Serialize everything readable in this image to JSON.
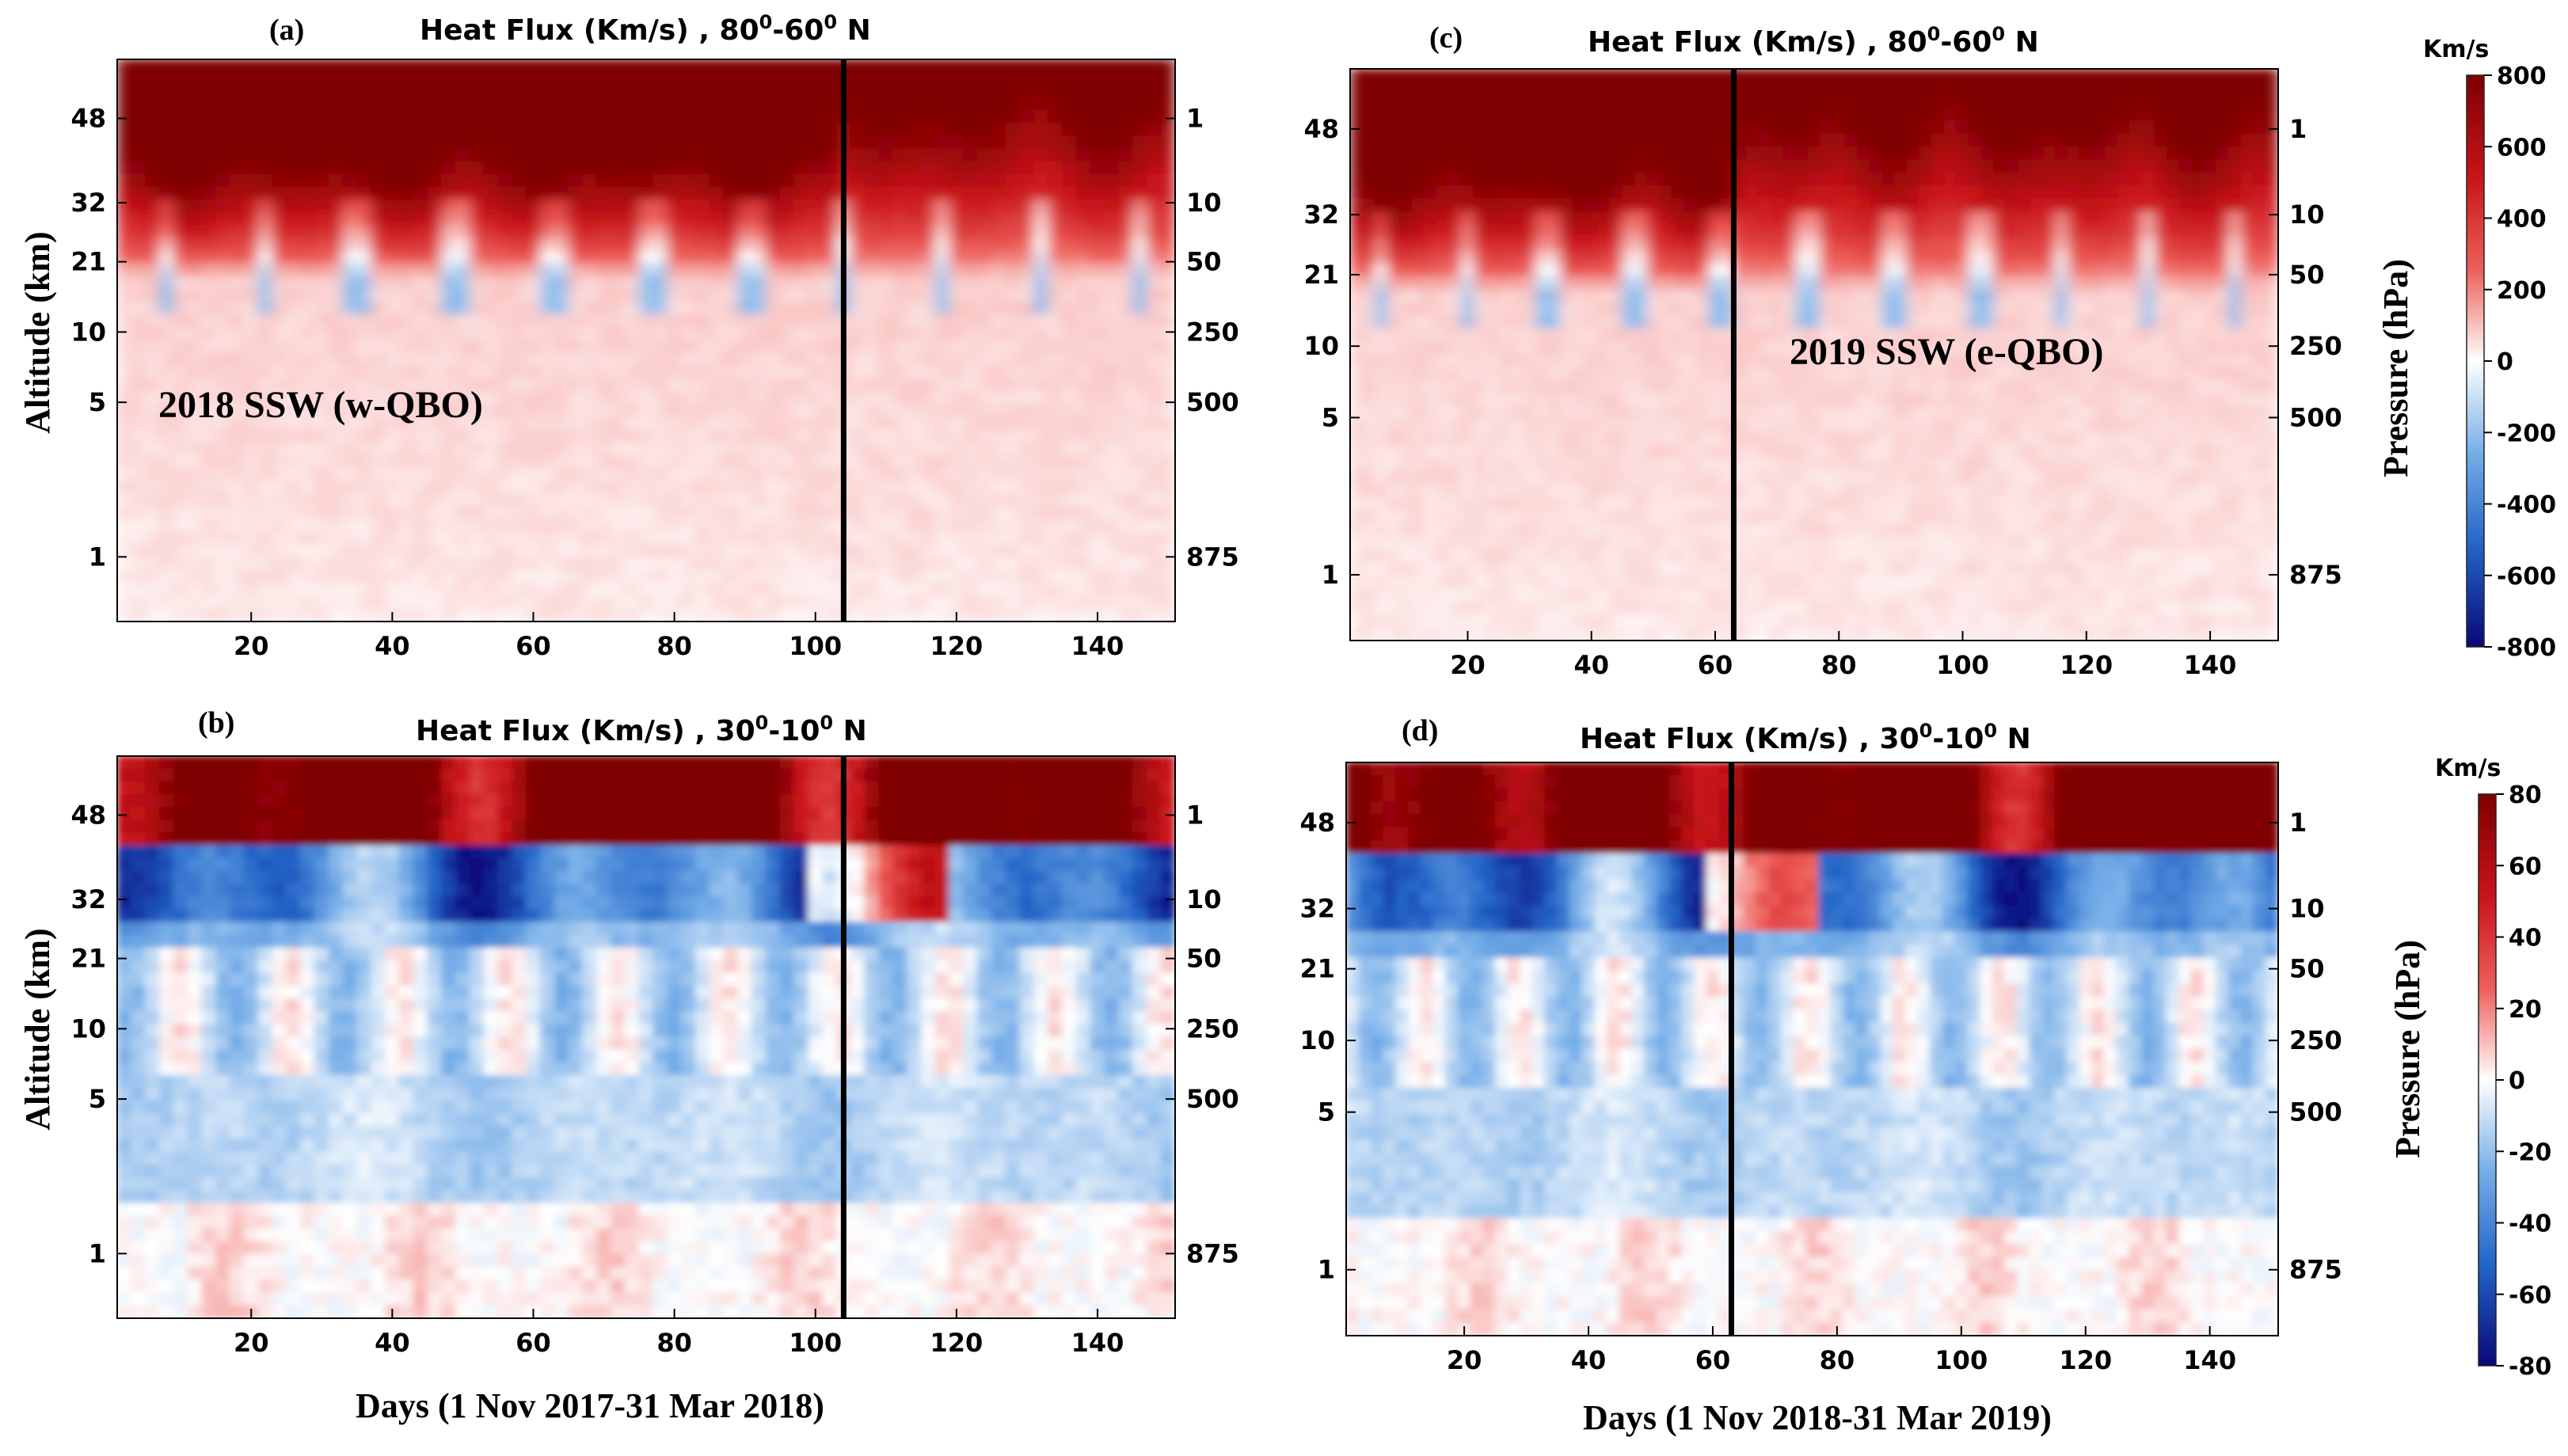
{
  "figure": {
    "description_axes": {
      "left_ylabel": "Altitude (km)",
      "right_ylabel": "Pressure (hPa)"
    }
  },
  "chart_data": [
    {
      "id": "a",
      "type": "heatmap",
      "panel_label": "(a)",
      "title": "Heat Flux   (Km/s) , 80⁰-60⁰ N",
      "title_parts": [
        "Heat Flux   (Km/s) , 80",
        "0",
        "-60",
        "0",
        " N"
      ],
      "inset_label": "2018 SSW (w-QBO)",
      "xlabel": "",
      "ylabel": "Altitude (km)",
      "xlim": [
        1,
        151
      ],
      "xticks": [
        20,
        40,
        60,
        80,
        100,
        120,
        140
      ],
      "yticks_altitude": [
        1,
        5,
        10,
        21,
        32,
        48
      ],
      "yticks_pressure": [
        875,
        500,
        250,
        50,
        10,
        1
      ],
      "ssw_day": 104,
      "colorbar_range": [
        -800,
        800
      ],
      "units": "Km/s",
      "regime": "strong",
      "seed": 11
    },
    {
      "id": "b",
      "type": "heatmap",
      "panel_label": "(b)",
      "title": "Heat Flux   (Km/s) , 30⁰-10⁰ N",
      "title_parts": [
        "Heat Flux   (Km/s) , 30",
        "0",
        "-10",
        "0",
        " N"
      ],
      "inset_label": "",
      "xlabel": "Days (1 Nov 2017-31 Mar 2018)",
      "ylabel": "Altitude (km)",
      "xlim": [
        1,
        151
      ],
      "xticks": [
        20,
        40,
        60,
        80,
        100,
        120,
        140
      ],
      "yticks_altitude": [
        1,
        5,
        10,
        21,
        32,
        48
      ],
      "yticks_pressure": [
        875,
        500,
        250,
        50,
        10,
        1
      ],
      "ssw_day": 104,
      "colorbar_range": [
        -80,
        80
      ],
      "units": "Km/s",
      "regime": "mixed",
      "seed": 23
    },
    {
      "id": "c",
      "type": "heatmap",
      "panel_label": "(c)",
      "title": "Heat Flux   (Km/s) , 80⁰-60⁰ N",
      "title_parts": [
        "Heat Flux   (Km/s) , 80",
        "0",
        "-60",
        "0",
        " N"
      ],
      "inset_label": "2019 SSW (e-QBO)",
      "xlabel": "",
      "ylabel": "Pressure (hPa)",
      "xlim": [
        1,
        151
      ],
      "xticks": [
        20,
        40,
        60,
        80,
        100,
        120,
        140
      ],
      "yticks_altitude": [
        1,
        5,
        10,
        21,
        32,
        48
      ],
      "yticks_pressure": [
        875,
        500,
        250,
        50,
        10,
        1
      ],
      "ssw_day": 63,
      "colorbar_range": [
        -800,
        800
      ],
      "units": "Km/s",
      "regime": "strong",
      "seed": 37
    },
    {
      "id": "d",
      "type": "heatmap",
      "panel_label": "(d)",
      "title": "Heat Flux   (Km/s) , 30⁰-10⁰ N",
      "title_parts": [
        "Heat Flux   (Km/s) , 30",
        "0",
        "-10",
        "0",
        " N"
      ],
      "inset_label": "",
      "xlabel": "Days (1 Nov 2018-31 Mar 2019)",
      "ylabel": "Pressure (hPa)",
      "xlim": [
        1,
        151
      ],
      "xticks": [
        20,
        40,
        60,
        80,
        100,
        120,
        140
      ],
      "yticks_altitude": [
        1,
        5,
        10,
        21,
        32,
        48
      ],
      "yticks_pressure": [
        875,
        500,
        250,
        50,
        10,
        1
      ],
      "ssw_day": 63,
      "colorbar_range": [
        -80,
        80
      ],
      "units": "Km/s",
      "regime": "mixed",
      "seed": 53
    }
  ],
  "colorbars": [
    {
      "id": "top",
      "title": "Km/s",
      "ticks": [
        800,
        600,
        400,
        200,
        0,
        -200,
        -400,
        -600,
        -800
      ],
      "tick_labels": [
        "800",
        "600",
        "400",
        "200",
        "0",
        "-200",
        "-400",
        "-600",
        "-800"
      ]
    },
    {
      "id": "bottom",
      "title": "Km/s",
      "ticks": [
        80,
        60,
        40,
        20,
        0,
        -20,
        -40,
        -60,
        -80
      ],
      "tick_labels": [
        "80",
        "60",
        "40",
        "20",
        "0",
        "-20",
        "-40",
        "-60",
        "-80"
      ]
    }
  ],
  "colors": {
    "positive_max": "#7f0000",
    "positive_mid": "#e8281e",
    "neutral": "#ffffff",
    "negative_mid": "#2f7fd8",
    "negative_max": "#08087a",
    "ssw_line": "#000000"
  }
}
